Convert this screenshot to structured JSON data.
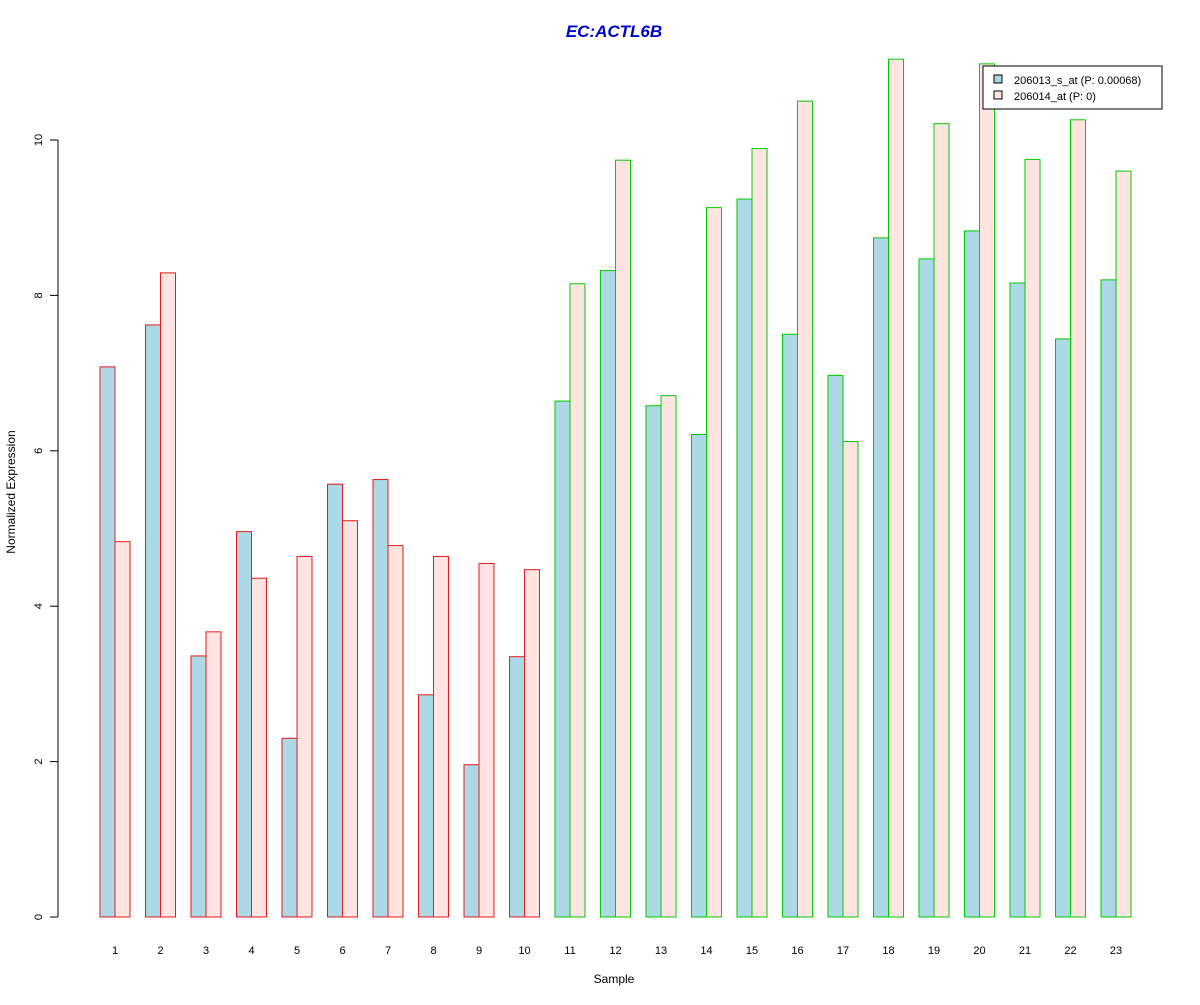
{
  "chart_data": {
    "type": "bar",
    "title": "EC:ACTL6B",
    "xlabel": "Sample",
    "ylabel": "Normalized Expression",
    "ylim": [
      0,
      11
    ],
    "yticks": [
      0,
      2,
      4,
      6,
      8,
      10
    ],
    "grid": false,
    "legend_position": "top-right",
    "categories": [
      "1",
      "2",
      "3",
      "4",
      "5",
      "6",
      "7",
      "8",
      "9",
      "10",
      "11",
      "12",
      "13",
      "14",
      "15",
      "16",
      "17",
      "18",
      "19",
      "20",
      "21",
      "22",
      "23"
    ],
    "series": [
      {
        "name": "206013_s_at (P: 0.00068)",
        "fill": "#add8e6",
        "values": [
          7.08,
          7.62,
          3.36,
          4.96,
          2.3,
          5.57,
          5.63,
          2.86,
          1.96,
          3.35,
          6.64,
          8.32,
          6.58,
          6.21,
          9.24,
          7.5,
          6.97,
          8.74,
          8.47,
          8.83,
          8.16,
          7.44,
          8.2
        ]
      },
      {
        "name": "206014_at (P: 0)",
        "fill": "#ffe4e1",
        "values": [
          4.83,
          8.29,
          3.67,
          4.36,
          4.64,
          5.1,
          4.78,
          4.64,
          4.55,
          4.47,
          8.15,
          9.74,
          6.71,
          9.13,
          9.89,
          10.5,
          6.12,
          11.04,
          10.21,
          10.98,
          9.75,
          10.26,
          9.6
        ]
      }
    ],
    "group_border_colors": [
      "#e41a1c",
      "#e41a1c",
      "#e41a1c",
      "#e41a1c",
      "#e41a1c",
      "#e41a1c",
      "#e41a1c",
      "#e41a1c",
      "#e41a1c",
      "#e41a1c",
      "#00cc00",
      "#00cc00",
      "#00cc00",
      "#00cc00",
      "#00cc00",
      "#00cc00",
      "#00cc00",
      "#00cc00",
      "#00cc00",
      "#00cc00",
      "#00cc00",
      "#00cc00",
      "#00cc00"
    ],
    "title_color": "#0000cc"
  }
}
